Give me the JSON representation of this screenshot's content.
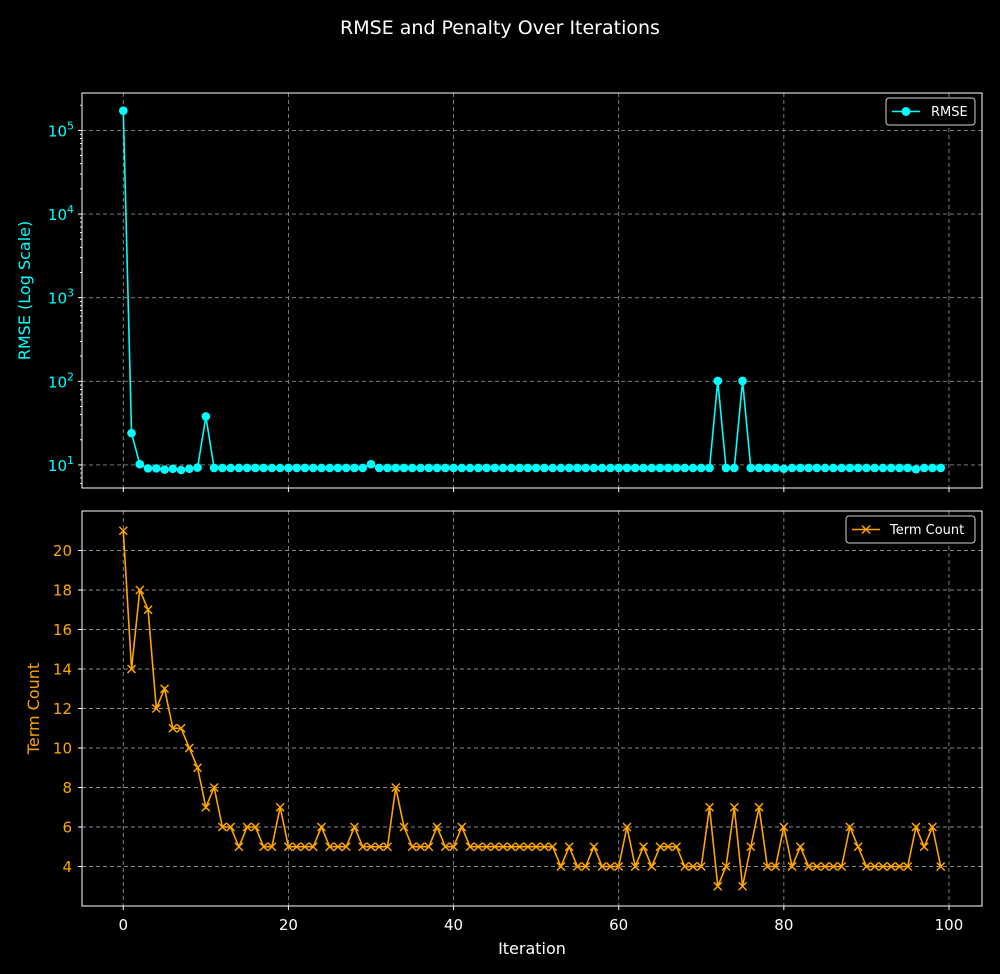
{
  "title": "RMSE and Penalty Over Iterations",
  "colors": {
    "background": "#000000",
    "rmse": "#00ffff",
    "term": "#ffa500",
    "grid": "#8a8a8a",
    "text": "#ffffff"
  },
  "chart_data": [
    {
      "type": "line",
      "ylabel": "RMSE (Log Scale)",
      "yscale": "log",
      "ylim": [
        5.3,
        280000
      ],
      "yticks": [
        {
          "value": 10,
          "mant": "10",
          "exp": "1"
        },
        {
          "value": 100,
          "mant": "10",
          "exp": "2"
        },
        {
          "value": 1000,
          "mant": "10",
          "exp": "3"
        },
        {
          "value": 10000,
          "mant": "10",
          "exp": "4"
        },
        {
          "value": 100000,
          "mant": "10",
          "exp": "5"
        }
      ],
      "xlim": [
        -5,
        104
      ],
      "grid": true,
      "legend_position": "top-right",
      "marker": "circle",
      "series": [
        {
          "name": "RMSE",
          "x": [
            0,
            1,
            2,
            3,
            4,
            5,
            6,
            7,
            8,
            9,
            10,
            11,
            12,
            13,
            14,
            15,
            16,
            17,
            18,
            19,
            20,
            21,
            22,
            23,
            24,
            25,
            26,
            27,
            28,
            29,
            30,
            31,
            32,
            33,
            34,
            35,
            36,
            37,
            38,
            39,
            40,
            41,
            42,
            43,
            44,
            45,
            46,
            47,
            48,
            49,
            50,
            51,
            52,
            53,
            54,
            55,
            56,
            57,
            58,
            59,
            60,
            61,
            62,
            63,
            64,
            65,
            66,
            67,
            68,
            69,
            70,
            71,
            72,
            73,
            74,
            75,
            76,
            77,
            78,
            79,
            80,
            81,
            82,
            83,
            84,
            85,
            86,
            87,
            88,
            89,
            90,
            91,
            92,
            93,
            94,
            95,
            96,
            97,
            98,
            99
          ],
          "values": [
            172000,
            24,
            10.2,
            9.1,
            9.1,
            8.8,
            9.0,
            8.7,
            9.0,
            9.3,
            38,
            9.2,
            9.2,
            9.2,
            9.2,
            9.2,
            9.2,
            9.2,
            9.2,
            9.2,
            9.2,
            9.2,
            9.2,
            9.2,
            9.2,
            9.2,
            9.2,
            9.2,
            9.2,
            9.2,
            10.2,
            9.2,
            9.2,
            9.2,
            9.2,
            9.2,
            9.2,
            9.2,
            9.2,
            9.2,
            9.2,
            9.2,
            9.2,
            9.2,
            9.2,
            9.2,
            9.2,
            9.2,
            9.2,
            9.2,
            9.2,
            9.2,
            9.2,
            9.2,
            9.2,
            9.2,
            9.2,
            9.2,
            9.2,
            9.2,
            9.2,
            9.2,
            9.2,
            9.2,
            9.2,
            9.2,
            9.2,
            9.2,
            9.2,
            9.2,
            9.2,
            9.2,
            101,
            9.2,
            9.2,
            101,
            9.2,
            9.2,
            9.2,
            9.2,
            9.0,
            9.2,
            9.2,
            9.2,
            9.2,
            9.2,
            9.2,
            9.2,
            9.2,
            9.2,
            9.2,
            9.2,
            9.2,
            9.2,
            9.2,
            9.2,
            8.9,
            9.2,
            9.2,
            9.2
          ]
        }
      ]
    },
    {
      "type": "line",
      "xlabel": "Iteration",
      "ylabel": "Term Count",
      "ylim": [
        2,
        22
      ],
      "yticks": [
        4,
        6,
        8,
        10,
        12,
        14,
        16,
        18,
        20
      ],
      "xlim": [
        -5,
        104
      ],
      "xticks": [
        0,
        20,
        40,
        60,
        80,
        100
      ],
      "grid": true,
      "legend_position": "top-right",
      "marker": "x",
      "series": [
        {
          "name": "Term Count",
          "x": [
            0,
            1,
            2,
            3,
            4,
            5,
            6,
            7,
            8,
            9,
            10,
            11,
            12,
            13,
            14,
            15,
            16,
            17,
            18,
            19,
            20,
            21,
            22,
            23,
            24,
            25,
            26,
            27,
            28,
            29,
            30,
            31,
            32,
            33,
            34,
            35,
            36,
            37,
            38,
            39,
            40,
            41,
            42,
            43,
            44,
            45,
            46,
            47,
            48,
            49,
            50,
            51,
            52,
            53,
            54,
            55,
            56,
            57,
            58,
            59,
            60,
            61,
            62,
            63,
            64,
            65,
            66,
            67,
            68,
            69,
            70,
            71,
            72,
            73,
            74,
            75,
            76,
            77,
            78,
            79,
            80,
            81,
            82,
            83,
            84,
            85,
            86,
            87,
            88,
            89,
            90,
            91,
            92,
            93,
            94,
            95,
            96,
            97,
            98,
            99
          ],
          "values": [
            21,
            14,
            18,
            17,
            12,
            13,
            11,
            11,
            10,
            9,
            7,
            8,
            6,
            6,
            5,
            6,
            6,
            5,
            5,
            7,
            5,
            5,
            5,
            5,
            6,
            5,
            5,
            5,
            6,
            5,
            5,
            5,
            5,
            8,
            6,
            5,
            5,
            5,
            6,
            5,
            5,
            6,
            5,
            5,
            5,
            5,
            5,
            5,
            5,
            5,
            5,
            5,
            5,
            4,
            5,
            4,
            4,
            5,
            4,
            4,
            4,
            6,
            4,
            5,
            4,
            5,
            5,
            5,
            4,
            4,
            4,
            7,
            3,
            4,
            7,
            3,
            5,
            7,
            4,
            4,
            6,
            4,
            5,
            4,
            4,
            4,
            4,
            4,
            6,
            5,
            4,
            4,
            4,
            4,
            4,
            4,
            6,
            5,
            6,
            4
          ]
        }
      ]
    }
  ]
}
